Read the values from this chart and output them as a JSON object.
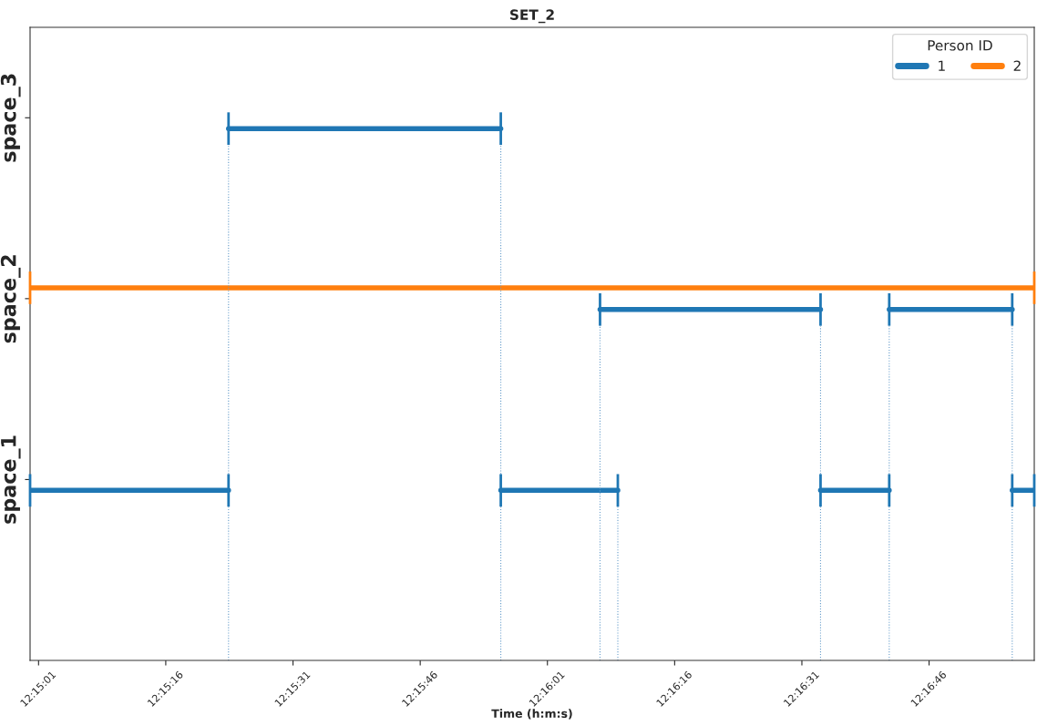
{
  "chart_data": {
    "type": "line",
    "title": "SET_2",
    "xlabel": "Time (h:m:s)",
    "legend_title": "Person ID",
    "legend": "top right",
    "xlim": [
      12.25,
      12.282889
    ],
    "ylim": [
      0,
      3.5
    ],
    "xticks": [
      {
        "value": 12.250278,
        "label": "12:15:01"
      },
      {
        "value": 12.254444,
        "label": "12:15:16"
      },
      {
        "value": 12.258611,
        "label": "12:15:31"
      },
      {
        "value": 12.262778,
        "label": "12:15:46"
      },
      {
        "value": 12.266944,
        "label": "12:16:01"
      },
      {
        "value": 12.271111,
        "label": "12:16:16"
      },
      {
        "value": 12.275278,
        "label": "12:16:31"
      },
      {
        "value": 12.279444,
        "label": "12:16:46"
      }
    ],
    "yticks": [
      {
        "value": 1,
        "label": "space_1"
      },
      {
        "value": 2,
        "label": "space_2"
      },
      {
        "value": 3,
        "label": "space_3"
      }
    ],
    "grid": false,
    "series": [
      {
        "name": "1",
        "color": "#1f77b4",
        "x": [
          12.25,
          12.2565,
          null,
          12.2565,
          12.265417,
          null,
          12.265417,
          12.26925,
          null,
          12.268667,
          12.275889,
          null,
          12.275889,
          12.278139,
          null,
          12.278139,
          12.282167,
          null,
          12.282167,
          12.282889
        ],
        "values": [
          0.94,
          0.94,
          null,
          2.94,
          2.94,
          null,
          0.94,
          0.94,
          null,
          1.94,
          1.94,
          null,
          0.94,
          0.94,
          null,
          1.94,
          1.94,
          null,
          0.94,
          0.94
        ],
        "errors": [
          0.09,
          0.09,
          null,
          0.09,
          0.09,
          null,
          0.09,
          0.09,
          null,
          0.09,
          0.09,
          null,
          0.09,
          0.09,
          null,
          0.09,
          0.09,
          null,
          0.09,
          0.09
        ]
      },
      {
        "name": "2",
        "color": "#ff7f0e",
        "x": [
          12.25,
          12.282889
        ],
        "values": [
          2.06,
          2.06
        ],
        "errors": [
          0.09,
          0.09
        ]
      },
      {
        "color": "#6a9fcc",
        "line_style": "dotted",
        "x": [
          12.2565,
          12.2565,
          null,
          12.265417,
          12.265417,
          null,
          12.268667,
          12.268667,
          null,
          12.26925,
          12.26925,
          null,
          12.275889,
          12.275889,
          null,
          12.278139,
          12.278139,
          null,
          12.282167,
          12.282167
        ],
        "values": [
          0,
          0.85,
          null,
          0,
          0.85,
          null,
          0,
          1.85,
          null,
          0,
          0.85,
          null,
          0,
          0.85,
          null,
          0,
          0.85,
          null,
          0,
          0.85
        ]
      },
      {
        "color": "#6a9fcc",
        "line_style": "dotted",
        "x": [
          12.2565,
          12.2565,
          null,
          12.265417,
          12.265417,
          null,
          12.275889,
          12.275889,
          null,
          12.278139,
          12.278139,
          null,
          12.282167,
          12.282167
        ],
        "values": [
          1.03,
          2.85,
          null,
          1.03,
          2.85,
          null,
          1.03,
          1.85,
          null,
          1.03,
          1.85,
          null,
          1.03,
          1.85
        ]
      }
    ]
  }
}
